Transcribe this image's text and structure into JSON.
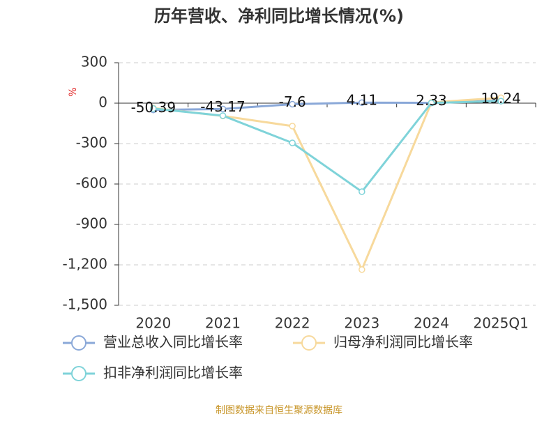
{
  "chart_data": {
    "type": "line",
    "title": "历年营收、净利同比增长情况(%)",
    "y_label": "%",
    "categories": [
      "2020",
      "2021",
      "2022",
      "2023",
      "2024",
      "2025Q1"
    ],
    "series": [
      {
        "name": "营业总收入同比增长率",
        "color": "#8aa8d8",
        "show_labels": true,
        "values": [
          -50.39,
          -43.17,
          -7.6,
          4.11,
          2.33,
          19.24
        ]
      },
      {
        "name": "归母净利润同比增长率",
        "color": "#f7d99c",
        "show_labels": false,
        "values": [
          -36,
          -95,
          -170,
          -1235,
          5,
          40
        ]
      },
      {
        "name": "扣非净利润同比增长率",
        "color": "#7fd3d9",
        "show_labels": false,
        "values": [
          -40,
          -93,
          -295,
          -657,
          2,
          15
        ]
      }
    ],
    "ylim": [
      -1500,
      300
    ],
    "yticks": [
      300,
      0,
      -300,
      -600,
      -900,
      {
        "value": -1200,
        "label": "-1,200"
      },
      {
        "value": -1500,
        "label": "-1,500"
      }
    ],
    "grid": true,
    "legend": "bottom",
    "source": "制图数据来自恒生聚源数据库"
  }
}
